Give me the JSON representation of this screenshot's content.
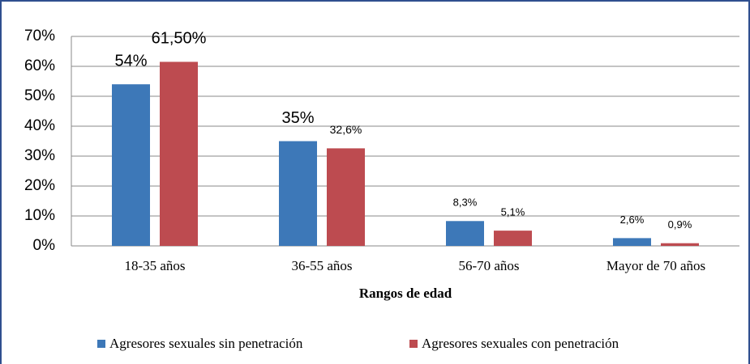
{
  "chart_data": {
    "type": "bar",
    "categories": [
      "18-35 años",
      "36-55 años",
      "56-70 años",
      "Mayor de 70 años"
    ],
    "series": [
      {
        "name": "Agresores sexuales sin penetración",
        "color": "#3d78b8",
        "values": [
          54,
          35,
          8.3,
          2.6
        ],
        "value_labels": [
          "54%",
          "35%",
          "8,3%",
          "2,6%"
        ]
      },
      {
        "name": "Agresores sexuales con penetración",
        "color": "#bd4b50",
        "values": [
          61.5,
          32.6,
          5.1,
          0.9
        ],
        "value_labels": [
          "61,50%",
          "32,6%",
          "5,1%",
          "0,9%"
        ]
      }
    ],
    "x_label": "Rangos de edad",
    "ylim": [
      0,
      70
    ],
    "yticks": [
      {
        "value": 0,
        "label": "0%"
      },
      {
        "value": 10,
        "label": "10%"
      },
      {
        "value": 20,
        "label": "20%"
      },
      {
        "value": 30,
        "label": "30%"
      },
      {
        "value": 40,
        "label": "40%"
      },
      {
        "value": 50,
        "label": "50%"
      },
      {
        "value": 60,
        "label": "60%"
      },
      {
        "value": 70,
        "label": "70%"
      }
    ],
    "grid": true,
    "legend": "bottom"
  }
}
